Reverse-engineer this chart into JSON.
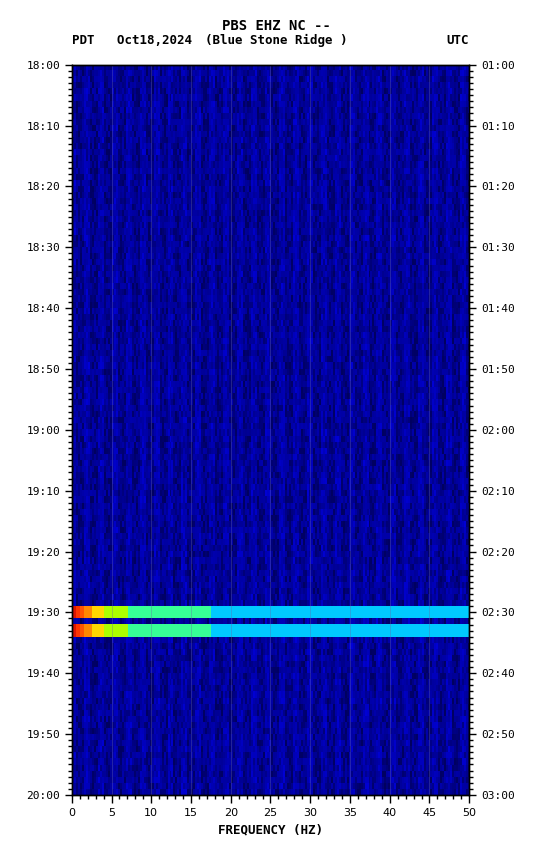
{
  "title_line1": "PBS EHZ NC --",
  "title_line2_left": "PDT   Oct18,2024",
  "title_line2_center": "(Blue Stone Ridge )",
  "title_line2_right": "UTC",
  "xlabel": "FREQUENCY (HZ)",
  "freq_min": 0,
  "freq_max": 50,
  "left_ytick_labels": [
    "18:00",
    "18:10",
    "18:20",
    "18:30",
    "18:40",
    "18:50",
    "19:00",
    "19:10",
    "19:20",
    "19:30",
    "19:40",
    "19:50",
    "20:00"
  ],
  "right_ytick_labels": [
    "01:00",
    "01:10",
    "01:20",
    "01:30",
    "01:40",
    "01:50",
    "02:00",
    "02:10",
    "02:20",
    "02:30",
    "02:40",
    "02:50",
    "03:00"
  ],
  "signal_row1": 90,
  "signal_row2": 93,
  "total_rows": 120,
  "n_freq_bins": 200,
  "font_family": "monospace"
}
